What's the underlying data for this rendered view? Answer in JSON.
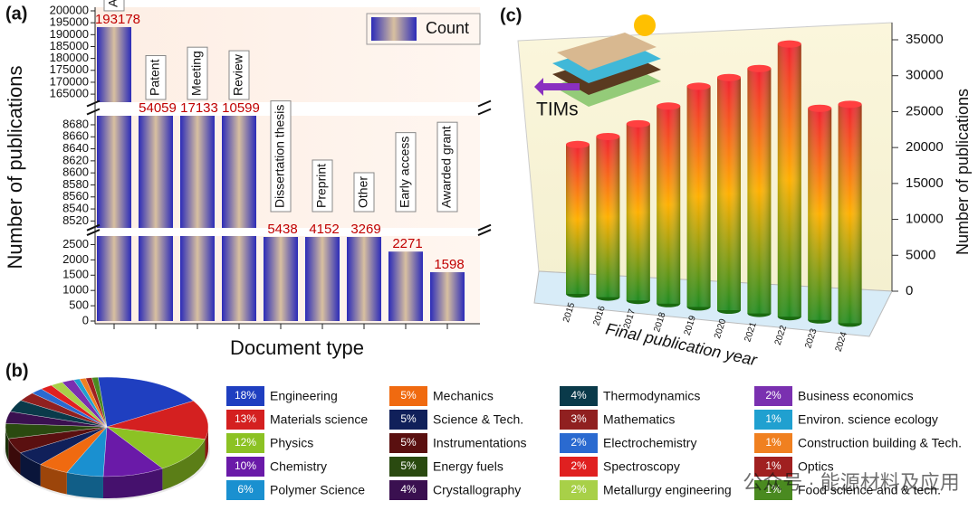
{
  "chart_data": [
    {
      "type": "broken_bar",
      "panel": "(a)",
      "x_label": "Document type",
      "y_label": "Number of publications",
      "legend": "Count",
      "color": "#2b2bb8",
      "categories": [
        "Article",
        "Patent",
        "Meeting",
        "Review",
        "Dissertation thesis",
        "Preprint",
        "Other",
        "Early access",
        "Awarded grant"
      ],
      "values": [
        193178,
        54059,
        17133,
        10599,
        5438,
        4152,
        3269,
        2271,
        1598
      ],
      "y_segments": [
        {
          "ylim": [
            0,
            2750
          ],
          "yticks": [
            0,
            500,
            1000,
            1500,
            2000,
            2500
          ]
        },
        {
          "ylim": [
            8510,
            8695
          ],
          "yticks": [
            8520,
            8540,
            8560,
            8580,
            8600,
            8620,
            8640,
            8660,
            8680
          ]
        },
        {
          "ylim": [
            162000,
            200000
          ],
          "yticks": [
            165000,
            170000,
            175000,
            180000,
            185000,
            190000,
            195000,
            200000
          ]
        }
      ]
    },
    {
      "type": "pie",
      "panel": "(b)",
      "categories": [
        "Engineering",
        "Materials science",
        "Physics",
        "Chemistry",
        "Polymer Science",
        "Mechanics",
        "Science & Tech.",
        "Instrumentations",
        "Energy fuels",
        "Crystallography",
        "Thermodynamics",
        "Mathematics",
        "Electrochemistry",
        "Spectroscopy",
        "Metallurgy engineering",
        "Business economics",
        "Environ. science ecology",
        "Construction building & Tech.",
        "Optics",
        "Food science and & tech."
      ],
      "values": [
        18,
        13,
        12,
        10,
        6,
        5,
        5,
        5,
        5,
        4,
        4,
        3,
        2,
        2,
        2,
        2,
        1,
        1,
        1,
        1
      ],
      "value_labels": [
        "18%",
        "13%",
        "12%",
        "10%",
        "6%",
        "5%",
        "5%",
        "5%",
        "5%",
        "4%",
        "4%",
        "3%",
        "2%",
        "2%",
        "2%",
        "2%",
        "1%",
        "1%",
        "1%",
        "1%"
      ],
      "colors": [
        "#1f3fc0",
        "#d42020",
        "#8cc224",
        "#6a1aa8",
        "#1a90d0",
        "#f06a10",
        "#10205a",
        "#5a1010",
        "#2a4a10",
        "#3a1050",
        "#0a3a4a",
        "#902020",
        "#2a6ad0",
        "#e02020",
        "#a8d048",
        "#7a30b0",
        "#20a0d0",
        "#f08020",
        "#a02020",
        "#4a8a20"
      ]
    },
    {
      "type": "bar3d",
      "panel": "(c)",
      "annotation": "TIMs",
      "x_label": "Final publication year",
      "y_label": "Number of publications",
      "categories": [
        "2015",
        "2016",
        "2017",
        "2018",
        "2019",
        "2020",
        "2021",
        "2022",
        "2023",
        "2024"
      ],
      "values": [
        20800,
        22000,
        23800,
        26200,
        28800,
        29900,
        31000,
        34000,
        26000,
        26500
      ],
      "ylim": [
        0,
        35000
      ],
      "yticks": [
        0,
        5000,
        10000,
        15000,
        20000,
        25000,
        30000,
        35000
      ]
    }
  ],
  "watermark": "公众号 · 能源材料及应用"
}
